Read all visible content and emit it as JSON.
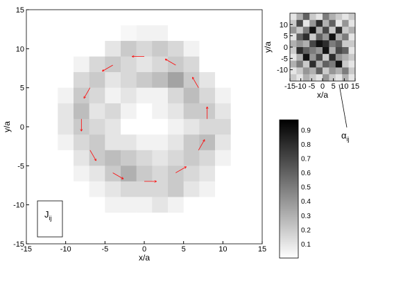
{
  "chart_data": [
    {
      "type": "heatmap",
      "xlabel": "x/a",
      "ylabel": "y/a",
      "xlim": [
        -15,
        15
      ],
      "ylim": [
        -15,
        15
      ],
      "xticks": [
        -15,
        -10,
        -5,
        0,
        5,
        10,
        15
      ],
      "yticks": [
        -15,
        -10,
        -5,
        0,
        5,
        10,
        15
      ],
      "z": [
        [
          0,
          0,
          0,
          0,
          0,
          0,
          0,
          0,
          0,
          0,
          0,
          0,
          0,
          0,
          0
        ],
        [
          0,
          0,
          0,
          0,
          0,
          0,
          0.03,
          0.05,
          0.05,
          0,
          0,
          0,
          0,
          0,
          0
        ],
        [
          0,
          0,
          0,
          0,
          0,
          0.1,
          0.2,
          0.15,
          0.2,
          0.15,
          0.05,
          0,
          0,
          0,
          0
        ],
        [
          0,
          0,
          0,
          0.05,
          0.15,
          0.2,
          0.15,
          0.1,
          0.15,
          0.2,
          0.15,
          0,
          0,
          0,
          0
        ],
        [
          0,
          0,
          0,
          0.15,
          0.2,
          0.1,
          0.15,
          0.2,
          0.25,
          0.35,
          0.2,
          0.1,
          0,
          0,
          0
        ],
        [
          0,
          0,
          0.05,
          0.2,
          0.15,
          0.05,
          0.1,
          0.05,
          0.05,
          0.15,
          0.25,
          0.15,
          0.05,
          0,
          0
        ],
        [
          0,
          0,
          0.1,
          0.25,
          0.1,
          0.15,
          0.05,
          0,
          0.05,
          0.1,
          0.2,
          0.2,
          0.1,
          0,
          0
        ],
        [
          0,
          0,
          0.1,
          0.2,
          0.15,
          0.1,
          0,
          0,
          0,
          0.05,
          0.1,
          0.15,
          0.15,
          0,
          0
        ],
        [
          0,
          0,
          0.05,
          0.15,
          0.2,
          0.1,
          0.1,
          0.05,
          0.05,
          0.1,
          0.2,
          0.25,
          0.1,
          0,
          0
        ],
        [
          0,
          0,
          0,
          0.1,
          0.2,
          0.25,
          0.2,
          0.15,
          0.1,
          0.15,
          0.2,
          0.15,
          0.05,
          0,
          0
        ],
        [
          0,
          0,
          0,
          0.05,
          0.1,
          0.2,
          0.3,
          0.2,
          0.15,
          0.2,
          0.15,
          0.1,
          0,
          0,
          0
        ],
        [
          0,
          0,
          0,
          0,
          0.05,
          0.1,
          0.15,
          0.15,
          0.15,
          0.2,
          0.1,
          0.05,
          0,
          0,
          0
        ],
        [
          0,
          0,
          0,
          0,
          0,
          0.05,
          0.05,
          0.05,
          0.1,
          0.05,
          0,
          0,
          0,
          0,
          0
        ],
        [
          0,
          0,
          0,
          0,
          0,
          0,
          0,
          0,
          0,
          0,
          0,
          0,
          0,
          0,
          0
        ],
        [
          0,
          0,
          0,
          0,
          0,
          0,
          0,
          0,
          0,
          0,
          0,
          0,
          0,
          0,
          0
        ]
      ],
      "arrows": {
        "x": [
          8,
          6.9,
          4,
          0,
          -4,
          -6.9,
          -8,
          -6.9,
          -4,
          0,
          4,
          6.9
        ],
        "y": [
          1,
          5,
          7.9,
          9,
          7.9,
          5,
          1,
          -3,
          -5.9,
          -7,
          -5.9,
          -3
        ],
        "u": [
          0,
          -0.75,
          -1.3,
          -1.5,
          -1.3,
          -0.75,
          0,
          0.75,
          1.3,
          1.5,
          1.3,
          0.75
        ],
        "v": [
          1.5,
          1.3,
          0.75,
          0,
          -0.75,
          -1.3,
          -1.5,
          -1.3,
          -0.75,
          0,
          0.75,
          1.3
        ]
      },
      "arrow_color": "#ff0000",
      "label_main": "J",
      "label_sub": "ij",
      "clim": [
        0,
        0.97
      ],
      "cticks": [
        0.1,
        0.2,
        0.3,
        0.4,
        0.5,
        0.6,
        0.7,
        0.8,
        0.9
      ]
    },
    {
      "type": "heatmap",
      "xlabel": "x/a",
      "ylabel": "y/a",
      "xlim": [
        -15,
        15
      ],
      "ylim": [
        -15,
        15
      ],
      "xticks": [
        -15,
        -10,
        -5,
        0,
        5,
        10,
        15
      ],
      "yticks": [
        -10,
        -5,
        0,
        5,
        10
      ],
      "z": [
        [
          0.1,
          0.3,
          0.6,
          0.2,
          0.1,
          0.5,
          0.3,
          0.2,
          0.1,
          0.2
        ],
        [
          0.2,
          0.7,
          0.1,
          0.4,
          0.8,
          0.3,
          0.6,
          0.1,
          0.4,
          0.1
        ],
        [
          0.4,
          0.2,
          0.5,
          0.9,
          0.3,
          0.7,
          0.2,
          0.8,
          0.2,
          0.3
        ],
        [
          0.1,
          0.6,
          0.8,
          0.2,
          0.6,
          0.4,
          0.9,
          0.3,
          0.5,
          0.1
        ],
        [
          0.3,
          0.4,
          0.3,
          0.7,
          0.9,
          0.8,
          0.5,
          0.6,
          0.2,
          0.2
        ],
        [
          0.2,
          0.8,
          0.6,
          0.5,
          0.4,
          0.9,
          0.3,
          0.7,
          0.6,
          0.1
        ],
        [
          0.1,
          0.3,
          0.9,
          0.4,
          0.7,
          0.2,
          0.8,
          0.4,
          0.3,
          0.2
        ],
        [
          0.3,
          0.5,
          0.2,
          0.8,
          0.3,
          0.6,
          0.5,
          0.9,
          0.2,
          0.1
        ],
        [
          0.1,
          0.2,
          0.4,
          0.3,
          0.6,
          0.2,
          0.4,
          0.3,
          0.5,
          0.2
        ],
        [
          0.2,
          0.1,
          0.3,
          0.2,
          0.1,
          0.4,
          0.2,
          0.1,
          0.3,
          0.1
        ]
      ],
      "annotation_main": "α",
      "annotation_sub": "ij"
    }
  ]
}
